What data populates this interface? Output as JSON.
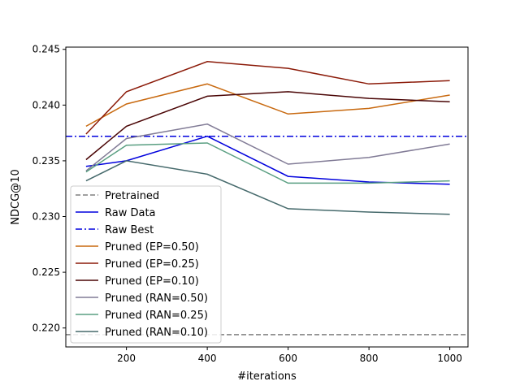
{
  "chart_data": {
    "type": "line",
    "title": "",
    "xlabel": "#iterations",
    "ylabel": "NDCG@10",
    "xlim": [
      50,
      1045
    ],
    "ylim": [
      0.2183,
      0.2452
    ],
    "x_ticks": [
      200,
      400,
      600,
      800,
      1000
    ],
    "y_ticks": [
      0.22,
      0.225,
      0.23,
      0.235,
      0.24,
      0.245
    ],
    "y_tick_labels": [
      "0.220",
      "0.225",
      "0.230",
      "0.235",
      "0.240",
      "0.245"
    ],
    "grid": false,
    "legend_position": "lower-left",
    "reference_lines": [
      {
        "name": "Pretrained",
        "y": 0.2194,
        "color": "#808080",
        "style": "dashed"
      },
      {
        "name": "Raw Best",
        "y": 0.2372,
        "color": "#0000dd",
        "style": "dashdot"
      }
    ],
    "x": [
      100,
      200,
      400,
      600,
      800,
      1000
    ],
    "series": [
      {
        "name": "Raw Data",
        "color": "#0000dd",
        "values": [
          0.2345,
          0.235,
          0.2372,
          0.2336,
          0.2331,
          0.2329
        ]
      },
      {
        "name": "Pruned (EP=0.50)",
        "color": "#c8690f",
        "values": [
          0.2381,
          0.2401,
          0.2419,
          0.2392,
          0.2397,
          0.2409
        ]
      },
      {
        "name": "Pruned (EP=0.25)",
        "color": "#8b1a08",
        "values": [
          0.2374,
          0.2412,
          0.2439,
          0.2433,
          0.2419,
          0.2422
        ]
      },
      {
        "name": "Pruned (EP=0.10)",
        "color": "#4a0505",
        "values": [
          0.2351,
          0.2381,
          0.2408,
          0.2412,
          0.2406,
          0.2403
        ]
      },
      {
        "name": "Pruned (RAN=0.50)",
        "color": "#817b96",
        "values": [
          0.2341,
          0.237,
          0.2383,
          0.2347,
          0.2353,
          0.2365
        ]
      },
      {
        "name": "Pruned (RAN=0.25)",
        "color": "#5a9f82",
        "values": [
          0.234,
          0.2364,
          0.2366,
          0.233,
          0.233,
          0.2332
        ]
      },
      {
        "name": "Pruned (RAN=0.10)",
        "color": "#466a6c",
        "values": [
          0.2332,
          0.235,
          0.2338,
          0.2307,
          0.2304,
          0.2302
        ]
      }
    ],
    "legend": [
      {
        "label": "Pretrained",
        "color": "#808080",
        "style": "dashed"
      },
      {
        "label": "Raw Data",
        "color": "#0000dd",
        "style": "solid"
      },
      {
        "label": "Raw Best",
        "color": "#0000dd",
        "style": "dashdot"
      },
      {
        "label": "Pruned (EP=0.50)",
        "color": "#c8690f",
        "style": "solid"
      },
      {
        "label": "Pruned (EP=0.25)",
        "color": "#8b1a08",
        "style": "solid"
      },
      {
        "label": "Pruned (EP=0.10)",
        "color": "#4a0505",
        "style": "solid"
      },
      {
        "label": "Pruned (RAN=0.50)",
        "color": "#817b96",
        "style": "solid"
      },
      {
        "label": "Pruned (RAN=0.25)",
        "color": "#5a9f82",
        "style": "solid"
      },
      {
        "label": "Pruned (RAN=0.10)",
        "color": "#466a6c",
        "style": "solid"
      }
    ]
  }
}
